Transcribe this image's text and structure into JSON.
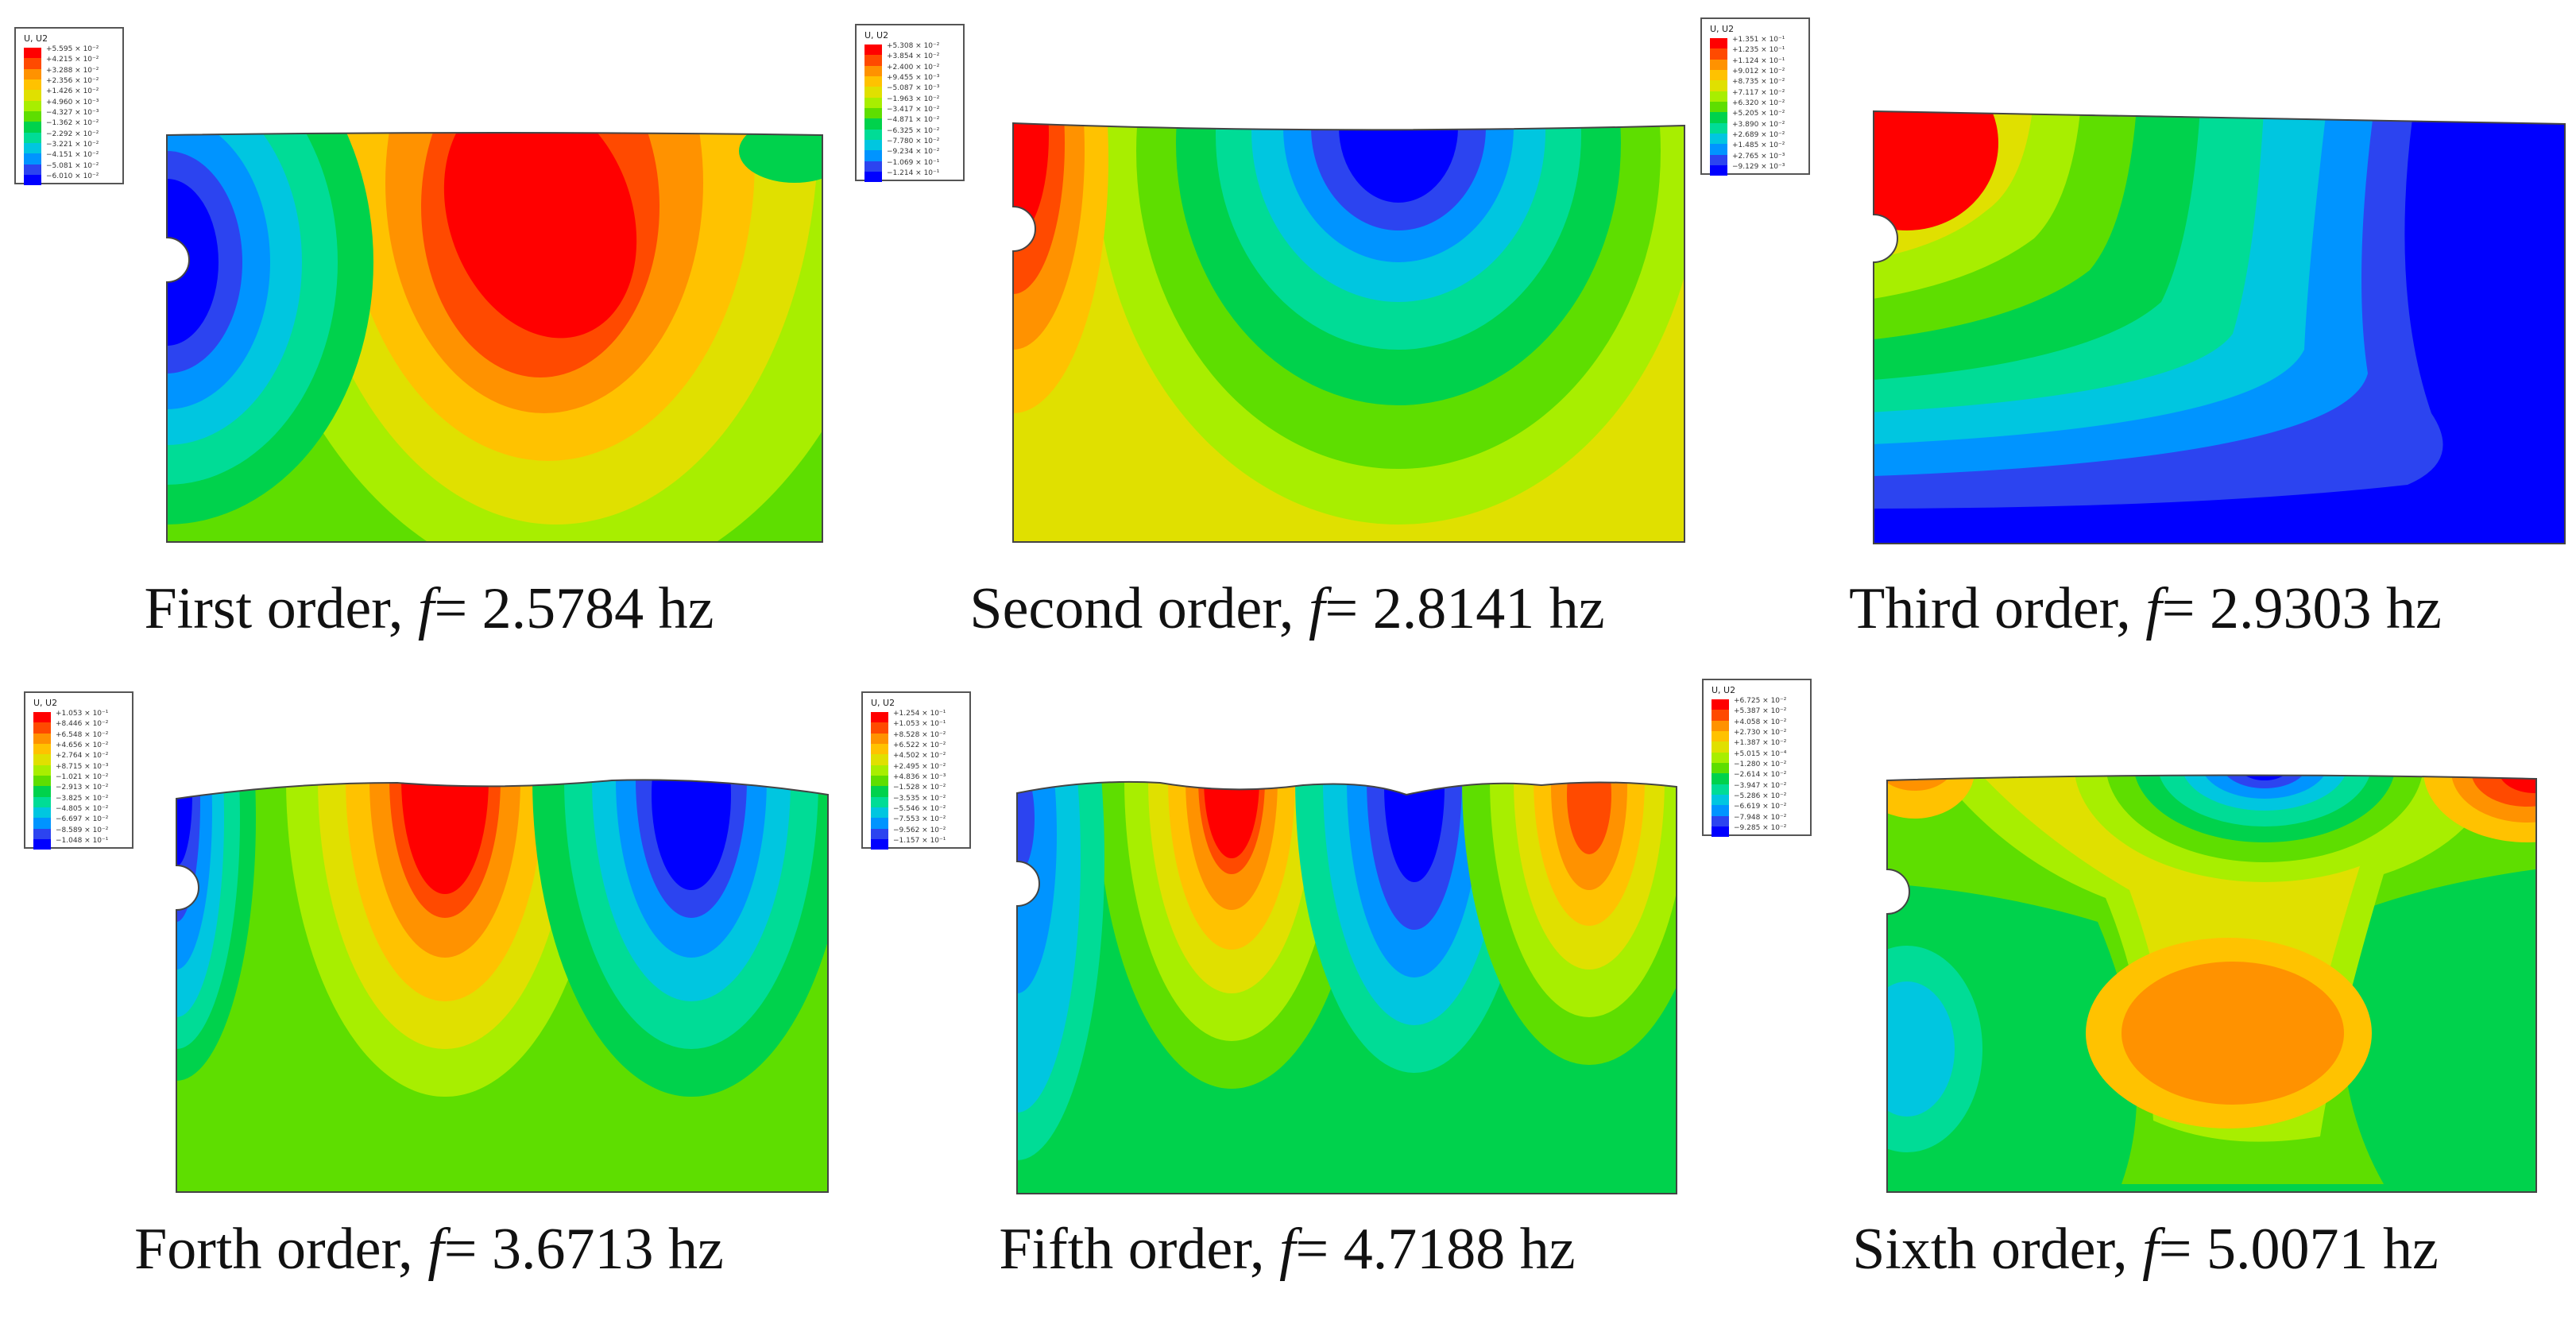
{
  "legend_title": "U, U2",
  "legend_colors": [
    "#ff0000",
    "#ff4a00",
    "#ff9200",
    "#ffc200",
    "#e0e000",
    "#a8ee00",
    "#5ede00",
    "#00d24c",
    "#00dc96",
    "#00c6e0",
    "#0094ff",
    "#2c44f0",
    "#0000ff"
  ],
  "panels": [
    {
      "caption_prefix": "First order, ",
      "caption_symbol": "f",
      "caption_value": "= 2.5784 hz",
      "legend_values": [
        "+5.595 × 10⁻²",
        "+4.215 × 10⁻²",
        "+3.288 × 10⁻²",
        "+2.356 × 10⁻²",
        "+1.426 × 10⁻²",
        "+4.960 × 10⁻³",
        "−4.327 × 10⁻³",
        "−1.362 × 10⁻²",
        "−2.292 × 10⁻²",
        "−3.221 × 10⁻²",
        "−4.151 × 10⁻²",
        "−5.081 × 10⁻²",
        "−6.010 × 10⁻²"
      ]
    },
    {
      "caption_prefix": "Second order, ",
      "caption_symbol": "f",
      "caption_value": "= 2.8141 hz",
      "legend_values": [
        "+5.308 × 10⁻²",
        "+3.854 × 10⁻²",
        "+2.400 × 10⁻²",
        "+9.455 × 10⁻³",
        "−5.087 × 10⁻³",
        "−1.963 × 10⁻²",
        "−3.417 × 10⁻²",
        "−4.871 × 10⁻²",
        "−6.325 × 10⁻²",
        "−7.780 × 10⁻²",
        "−9.234 × 10⁻²",
        "−1.069 × 10⁻¹",
        "−1.214 × 10⁻¹"
      ]
    },
    {
      "caption_prefix": "Third order, ",
      "caption_symbol": "f",
      "caption_value": "= 2.9303 hz",
      "legend_values": [
        "+1.351 × 10⁻¹",
        "+1.235 × 10⁻¹",
        "+1.124 × 10⁻¹",
        "+9.012 × 10⁻²",
        "+8.735 × 10⁻²",
        "+7.117 × 10⁻²",
        "+6.320 × 10⁻²",
        "+5.205 × 10⁻²",
        "+3.890 × 10⁻²",
        "+2.689 × 10⁻²",
        "+1.485 × 10⁻²",
        "+2.765 × 10⁻³",
        "−9.129 × 10⁻³"
      ]
    },
    {
      "caption_prefix": "Forth order, ",
      "caption_symbol": "f",
      "caption_value": "= 3.6713 hz",
      "legend_values": [
        "+1.053 × 10⁻¹",
        "+8.446 × 10⁻²",
        "+6.548 × 10⁻²",
        "+4.656 × 10⁻²",
        "+2.764 × 10⁻²",
        "+8.715 × 10⁻³",
        "−1.021 × 10⁻²",
        "−2.913 × 10⁻²",
        "−3.825 × 10⁻²",
        "−4.805 × 10⁻²",
        "−6.697 × 10⁻²",
        "−8.589 × 10⁻²",
        "−1.048 × 10⁻¹"
      ]
    },
    {
      "caption_prefix": "Fifth order, ",
      "caption_symbol": "f",
      "caption_value": "= 4.7188 hz",
      "legend_values": [
        "+1.254 × 10⁻¹",
        "+1.053 × 10⁻¹",
        "+8.528 × 10⁻²",
        "+6.522 × 10⁻²",
        "+4.502 × 10⁻²",
        "+2.495 × 10⁻²",
        "+4.836 × 10⁻³",
        "−1.528 × 10⁻²",
        "−3.535 × 10⁻²",
        "−5.546 × 10⁻²",
        "−7.553 × 10⁻²",
        "−9.562 × 10⁻²",
        "−1.157 × 10⁻¹"
      ]
    },
    {
      "caption_prefix": "Sixth order, ",
      "caption_symbol": "f",
      "caption_value": "= 5.0071 hz",
      "legend_values": [
        "+6.725 × 10⁻²",
        "+5.387 × 10⁻²",
        "+4.058 × 10⁻²",
        "+2.730 × 10⁻²",
        "+1.387 × 10⁻²",
        "+5.015 × 10⁻⁴",
        "−1.280 × 10⁻²",
        "−2.614 × 10⁻²",
        "−3.947 × 10⁻²",
        "−5.286 × 10⁻²",
        "−6.619 × 10⁻²",
        "−7.948 × 10⁻²",
        "−9.285 × 10⁻²"
      ]
    }
  ]
}
